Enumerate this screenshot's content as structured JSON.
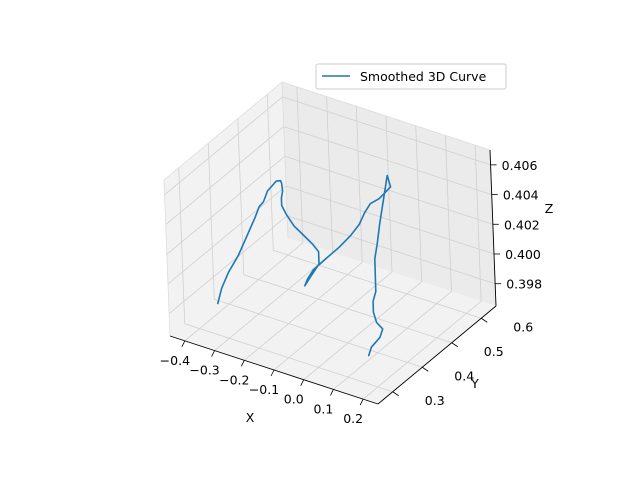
{
  "chart_data": {
    "type": "line",
    "projection": "3d",
    "title": "",
    "xlabel": "X",
    "ylabel": "Y",
    "zlabel": "Z",
    "xlim": [
      -0.45,
      0.25
    ],
    "ylim": [
      0.25,
      0.65
    ],
    "zlim": [
      0.3965,
      0.407
    ],
    "x_ticks": [
      -0.4,
      -0.3,
      -0.2,
      -0.1,
      0.0,
      0.1,
      0.2
    ],
    "x_tick_labels": [
      "−0.4",
      "−0.3",
      "−0.2",
      "−0.1",
      "0.0",
      "0.1",
      "0.2"
    ],
    "y_ticks": [
      0.3,
      0.4,
      0.5,
      0.6
    ],
    "y_tick_labels": [
      "0.3",
      "0.4",
      "0.5",
      "0.6"
    ],
    "z_ticks": [
      0.398,
      0.4,
      0.402,
      0.404,
      0.406
    ],
    "z_tick_labels": [
      "0.398",
      "0.400",
      "0.402",
      "0.404",
      "0.406"
    ],
    "grid": true,
    "legend_position": "top-right",
    "series": [
      {
        "name": "Smoothed 3D Curve",
        "color": "#1f77b4",
        "points": [
          {
            "x": -0.34,
            "y": 0.305,
            "z": 0.3985
          },
          {
            "x": -0.33,
            "y": 0.31,
            "z": 0.3995
          },
          {
            "x": -0.325,
            "y": 0.33,
            "z": 0.4003
          },
          {
            "x": -0.31,
            "y": 0.35,
            "z": 0.4012
          },
          {
            "x": -0.3,
            "y": 0.37,
            "z": 0.4022
          },
          {
            "x": -0.29,
            "y": 0.39,
            "z": 0.4032
          },
          {
            "x": -0.285,
            "y": 0.4,
            "z": 0.4038
          },
          {
            "x": -0.28,
            "y": 0.41,
            "z": 0.404
          },
          {
            "x": -0.275,
            "y": 0.42,
            "z": 0.4046
          },
          {
            "x": -0.27,
            "y": 0.43,
            "z": 0.4048
          },
          {
            "x": -0.265,
            "y": 0.44,
            "z": 0.405
          },
          {
            "x": -0.26,
            "y": 0.45,
            "z": 0.4049
          },
          {
            "x": -0.262,
            "y": 0.455,
            "z": 0.4046
          },
          {
            "x": -0.265,
            "y": 0.46,
            "z": 0.404
          },
          {
            "x": -0.27,
            "y": 0.46,
            "z": 0.4035
          },
          {
            "x": -0.27,
            "y": 0.46,
            "z": 0.403
          },
          {
            "x": -0.25,
            "y": 0.455,
            "z": 0.4026
          },
          {
            "x": -0.22,
            "y": 0.45,
            "z": 0.4021
          },
          {
            "x": -0.19,
            "y": 0.45,
            "z": 0.4017
          },
          {
            "x": -0.16,
            "y": 0.45,
            "z": 0.4013
          },
          {
            "x": -0.14,
            "y": 0.45,
            "z": 0.4009
          },
          {
            "x": -0.13,
            "y": 0.44,
            "z": 0.4003
          },
          {
            "x": -0.14,
            "y": 0.42,
            "z": 0.3997
          },
          {
            "x": -0.15,
            "y": 0.41,
            "z": 0.3992
          },
          {
            "x": -0.15,
            "y": 0.42,
            "z": 0.3995
          },
          {
            "x": -0.14,
            "y": 0.43,
            "z": 0.4
          },
          {
            "x": -0.12,
            "y": 0.45,
            "z": 0.4005
          },
          {
            "x": -0.09,
            "y": 0.47,
            "z": 0.4012
          },
          {
            "x": -0.07,
            "y": 0.49,
            "z": 0.4018
          },
          {
            "x": -0.05,
            "y": 0.5,
            "z": 0.4025
          },
          {
            "x": -0.04,
            "y": 0.51,
            "z": 0.4032
          },
          {
            "x": -0.03,
            "y": 0.52,
            "z": 0.4037
          },
          {
            "x": -0.01,
            "y": 0.53,
            "z": 0.404
          },
          {
            "x": 0.0,
            "y": 0.54,
            "z": 0.4043
          },
          {
            "x": 0.01,
            "y": 0.55,
            "z": 0.4046
          },
          {
            "x": 0.0,
            "y": 0.55,
            "z": 0.4053
          },
          {
            "x": 0.02,
            "y": 0.5,
            "z": 0.403
          },
          {
            "x": 0.03,
            "y": 0.48,
            "z": 0.4021
          },
          {
            "x": 0.03,
            "y": 0.47,
            "z": 0.4012
          },
          {
            "x": 0.04,
            "y": 0.46,
            "z": 0.4006
          },
          {
            "x": 0.05,
            "y": 0.45,
            "z": 0.4001
          },
          {
            "x": 0.06,
            "y": 0.44,
            "z": 0.3997
          },
          {
            "x": 0.06,
            "y": 0.43,
            "z": 0.3992
          },
          {
            "x": 0.07,
            "y": 0.42,
            "z": 0.3987
          },
          {
            "x": 0.09,
            "y": 0.41,
            "z": 0.3983
          },
          {
            "x": 0.11,
            "y": 0.41,
            "z": 0.398
          },
          {
            "x": 0.11,
            "y": 0.4,
            "z": 0.3976
          },
          {
            "x": 0.1,
            "y": 0.38,
            "z": 0.3972
          },
          {
            "x": 0.1,
            "y": 0.37,
            "z": 0.3968
          }
        ]
      }
    ]
  }
}
